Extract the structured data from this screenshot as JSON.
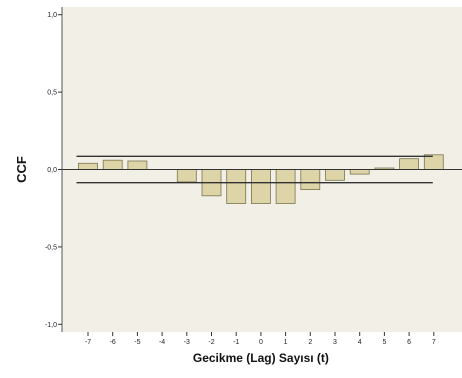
{
  "chart_data": {
    "type": "bar",
    "title": "",
    "xlabel": "Gecikme (Lag) Sayısı (t)",
    "ylabel": "CCF",
    "categories": [
      "-7",
      "-6",
      "-5",
      "-4",
      "-3",
      "-2",
      "-1",
      "0",
      "1",
      "2",
      "3",
      "4",
      "5",
      "6",
      "7"
    ],
    "values": [
      0.04,
      0.06,
      0.055,
      0.0,
      -0.08,
      -0.17,
      -0.22,
      -0.22,
      -0.22,
      -0.13,
      -0.07,
      -0.03,
      0.01,
      0.07,
      0.095
    ],
    "yticks": [
      "1,0",
      "0,5",
      "0,0",
      "-0,5",
      "-1,0"
    ],
    "ytick_values": [
      1.0,
      0.5,
      0.0,
      -0.5,
      -1.0
    ],
    "ylim": [
      -1.05,
      1.05
    ],
    "confidence_limits": {
      "upper": 0.085,
      "lower": -0.085
    },
    "grid": false,
    "colors": {
      "plot_background": "#f1efe6",
      "bar_fill": "#ddd5a7",
      "bar_stroke": "#7a744f",
      "reference_line": "#333333"
    }
  }
}
